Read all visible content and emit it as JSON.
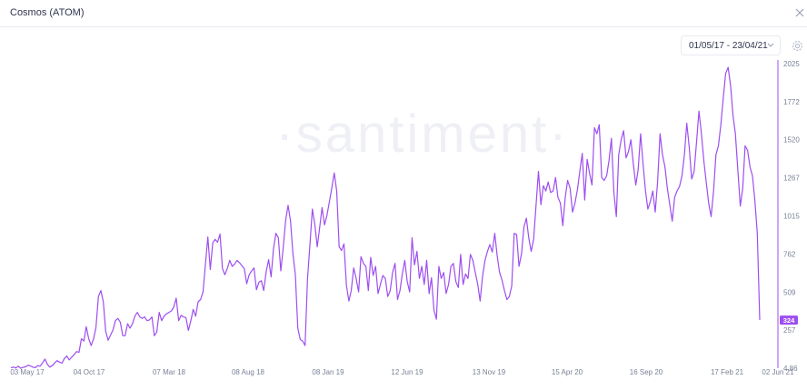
{
  "window": {
    "title": "Cosmos (ATOM)",
    "close_icon": "close-icon"
  },
  "toolbar": {
    "date_range": "01/05/17 - 23/04/21",
    "chevron_icon": "chevron-down-icon",
    "settings_icon": "gear-icon"
  },
  "watermark": "·santiment·",
  "chart_data": {
    "type": "line",
    "title": "",
    "xlabel": "",
    "ylabel": "",
    "x_ticks": [
      "03 May 17",
      "04 Oct 17",
      "07 Mar 18",
      "08 Aug 18",
      "08 Jan 19",
      "12 Jun 19",
      "13 Nov 19",
      "15 Apr 20",
      "16 Sep 20",
      "17 Feb 21",
      "02 Jun 21"
    ],
    "y_ticks": [
      "4.86",
      "257",
      "509",
      "762",
      "1015",
      "1267",
      "1520",
      "1772",
      "2025"
    ],
    "ylim": [
      4.86,
      2025
    ],
    "last_value_label": "324",
    "grid": false,
    "line_color": "#9d4ef0",
    "series": [
      {
        "name": "",
        "values": [
          8,
          12,
          6,
          18,
          4,
          10,
          14,
          25,
          20,
          12,
          8,
          22,
          18,
          40,
          65,
          30,
          12,
          22,
          40,
          55,
          45,
          38,
          70,
          85,
          60,
          78,
          95,
          115,
          110,
          200,
          185,
          280,
          200,
          155,
          200,
          275,
          480,
          520,
          445,
          250,
          190,
          225,
          260,
          320,
          335,
          310,
          220,
          220,
          300,
          270,
          300,
          350,
          375,
          345,
          335,
          345,
          320,
          325,
          345,
          220,
          245,
          375,
          320,
          350,
          365,
          375,
          385,
          410,
          470,
          320,
          355,
          345,
          340,
          255,
          320,
          395,
          350,
          445,
          460,
          510,
          690,
          875,
          660,
          835,
          860,
          840,
          895,
          665,
          625,
          665,
          720,
          680,
          695,
          720,
          705,
          685,
          665,
          565,
          625,
          650,
          670,
          525,
          575,
          585,
          520,
          645,
          725,
          610,
          795,
          900,
          870,
          650,
          800,
          985,
          1085,
          980,
          765,
          625,
          270,
          195,
          185,
          155,
          600,
          830,
          1060,
          960,
          810,
          940,
          1070,
          955,
          1020,
          1110,
          1200,
          1300,
          1180,
          810,
          785,
          830,
          555,
          450,
          520,
          670,
          600,
          510,
          745,
          700,
          680,
          520,
          740,
          620,
          680,
          500,
          560,
          620,
          600,
          480,
          520,
          640,
          700,
          460,
          520,
          630,
          720,
          580,
          510,
          870,
          690,
          780,
          600,
          680,
          560,
          720,
          500,
          605,
          390,
          330,
          680,
          600,
          640,
          500,
          560,
          680,
          700,
          580,
          540,
          760,
          560,
          630,
          600,
          760,
          720,
          640,
          560,
          450,
          615,
          720,
          780,
          825,
          775,
          900,
          750,
          640,
          590,
          520,
          460,
          480,
          550,
          900,
          890,
          680,
          760,
          940,
          1000,
          870,
          780,
          860,
          1090,
          1310,
          1090,
          1215,
          1180,
          1240,
          1170,
          1180,
          1270,
          1140,
          1100,
          950,
          1140,
          1250,
          1200,
          1040,
          1100,
          1190,
          1310,
          1430,
          1120,
          1390,
          1300,
          1220,
          1600,
          1560,
          1620,
          1270,
          1250,
          1280,
          1380,
          1530,
          1170,
          1010,
          1420,
          1520,
          1580,
          1400,
          1440,
          1520,
          1360,
          1220,
          1320,
          1560,
          1360,
          1180,
          1060,
          1110,
          1180,
          1040,
          1240,
          1560,
          1420,
          1340,
          1200,
          1090,
          980,
          1140,
          1180,
          1210,
          1280,
          1420,
          1630,
          1470,
          1260,
          1310,
          1500,
          1710,
          1560,
          1380,
          1240,
          1100,
          1010,
          1180,
          1420,
          1480,
          1620,
          1800,
          1960,
          2000,
          1880,
          1680,
          1560,
          1320,
          1080,
          1200,
          1480,
          1450,
          1340,
          1280,
          1120,
          900,
          324
        ],
        "key_points": [
          {
            "x": "2017-05-03",
            "y": 8
          },
          {
            "x": "2017-06-20",
            "y": 12
          },
          {
            "x": "2017-07-10",
            "y": 60
          },
          {
            "x": "2017-08-15",
            "y": 8
          },
          {
            "x": "2017-10-04",
            "y": 70
          },
          {
            "x": "2017-11-10",
            "y": 270
          },
          {
            "x": "2017-12-18",
            "y": 500
          },
          {
            "x": "2018-01-15",
            "y": 215
          },
          {
            "x": "2018-03-07",
            "y": 190
          },
          {
            "x": "2018-04-20",
            "y": 380
          },
          {
            "x": "2018-06-05",
            "y": 900
          },
          {
            "x": "2018-07-01",
            "y": 875
          },
          {
            "x": "2018-08-08",
            "y": 640
          },
          {
            "x": "2018-09-10",
            "y": 720
          },
          {
            "x": "2018-10-10",
            "y": 560
          },
          {
            "x": "2018-11-15",
            "y": 990
          },
          {
            "x": "2018-12-10",
            "y": 1170
          },
          {
            "x": "2018-12-25",
            "y": 170
          },
          {
            "x": "2019-01-08",
            "y": 680
          },
          {
            "x": "2019-02-05",
            "y": 1020
          },
          {
            "x": "2019-03-05",
            "y": 1290
          },
          {
            "x": "2019-04-05",
            "y": 540
          },
          {
            "x": "2019-06-12",
            "y": 640
          },
          {
            "x": "2019-08-10",
            "y": 560
          },
          {
            "x": "2019-09-20",
            "y": 810
          },
          {
            "x": "2019-11-13",
            "y": 380
          },
          {
            "x": "2020-01-10",
            "y": 760
          },
          {
            "x": "2020-03-13",
            "y": 560
          },
          {
            "x": "2020-04-15",
            "y": 640
          },
          {
            "x": "2020-05-25",
            "y": 890
          },
          {
            "x": "2020-07-10",
            "y": 850
          },
          {
            "x": "2020-08-05",
            "y": 1300
          },
          {
            "x": "2020-09-16",
            "y": 1240
          },
          {
            "x": "2020-10-20",
            "y": 1630
          },
          {
            "x": "2020-11-20",
            "y": 1270
          },
          {
            "x": "2020-12-20",
            "y": 930
          },
          {
            "x": "2021-01-10",
            "y": 160
          },
          {
            "x": "2021-01-25",
            "y": 1560
          },
          {
            "x": "2021-02-17",
            "y": 1390
          },
          {
            "x": "2021-03-05",
            "y": 1720
          },
          {
            "x": "2021-03-20",
            "y": 2000
          },
          {
            "x": "2021-04-05",
            "y": 1080
          },
          {
            "x": "2021-04-15",
            "y": 1500
          },
          {
            "x": "2021-04-23",
            "y": 324
          }
        ]
      }
    ]
  }
}
